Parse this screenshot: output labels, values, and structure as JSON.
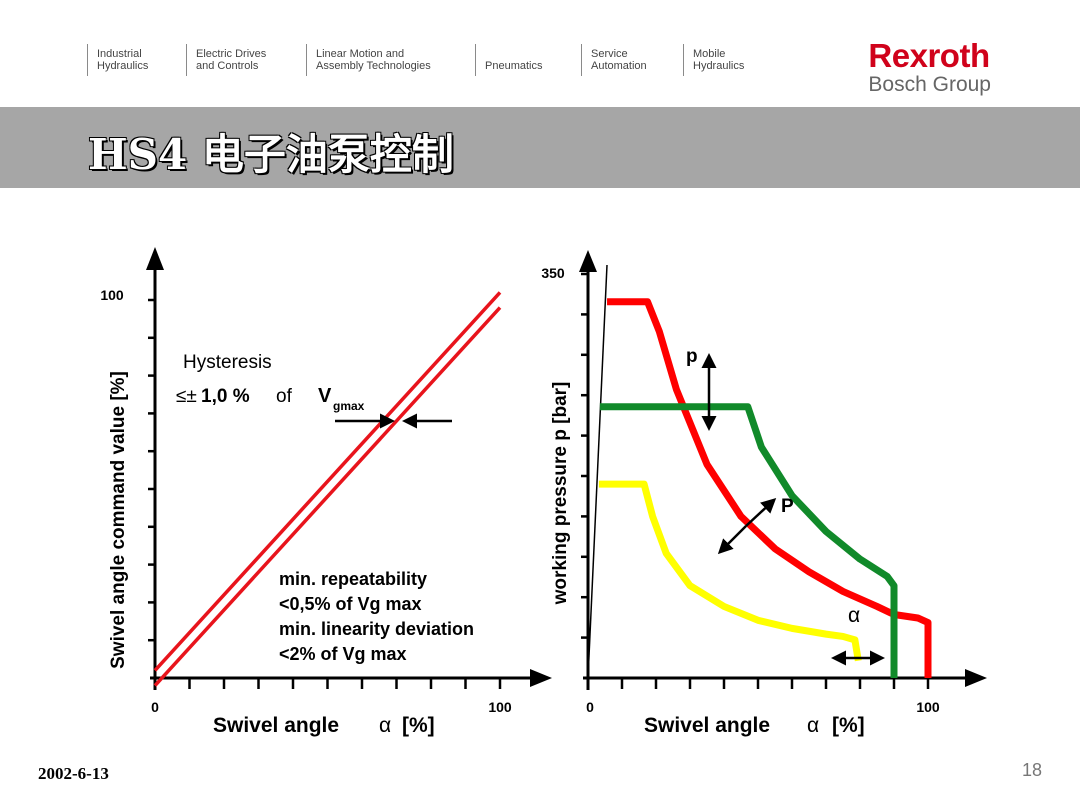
{
  "nav": {
    "items": [
      {
        "label": "Industrial\nHydraulics"
      },
      {
        "label": "Electric Drives\nand Controls"
      },
      {
        "label": "Linear Motion and\nAssembly Technologies"
      },
      {
        "label": "\nPneumatics"
      },
      {
        "label": "Service\nAutomation"
      },
      {
        "label": "Mobile\nHydraulics"
      }
    ]
  },
  "brand": {
    "name": "Rexroth",
    "sub": "Bosch Group",
    "color": "#d0021b"
  },
  "title": "HS4 电子油泵控制",
  "footer": {
    "date": "2002-6-13",
    "page": "18"
  },
  "chart_data": [
    {
      "type": "line",
      "ylabel": "Swivel angle command value [%]",
      "xlabel": "Swivel angle",
      "xlabel_symbol": "α",
      "xlabel_unit": "[%]",
      "x_ticks": [
        "0",
        "100"
      ],
      "y_ticks": [
        "100"
      ],
      "xlim": [
        0,
        100
      ],
      "ylim": [
        0,
        100
      ],
      "series": [
        {
          "color": "#e8141c",
          "x": [
            0,
            100
          ],
          "y": [
            -2,
            98
          ]
        },
        {
          "color": "#e8141c",
          "x": [
            0,
            100
          ],
          "y": [
            2,
            102
          ]
        }
      ],
      "annotations": {
        "hysteresis_title": "Hysteresis",
        "hysteresis_prefix": "≤±",
        "hysteresis_value": "1,0 %",
        "hysteresis_of": "of",
        "v_symbol": "V",
        "v_subscript": "gmax",
        "notes": [
          "min. repeatability",
          "<0,5% of Vg max",
          "min. linearity deviation",
          "<2% of Vg max"
        ]
      }
    },
    {
      "type": "line",
      "ylabel": "working pressure p [bar]",
      "xlabel": "Swivel angle",
      "xlabel_symbol": "α",
      "xlabel_unit": "[%]",
      "x_ticks": [
        "0",
        "100"
      ],
      "y_ticks": [
        "350"
      ],
      "xlim": [
        0,
        100
      ],
      "ylim": [
        0,
        350
      ],
      "series": [
        {
          "color": "#ff0000",
          "x": [
            5.6,
            17.5,
            21,
            26,
            35,
            45,
            55,
            65,
            75,
            85,
            90,
            97,
            100,
            100
          ],
          "y": [
            326,
            326,
            300,
            250,
            185,
            140,
            112,
            92,
            75,
            62,
            55,
            52,
            48,
            0
          ]
        },
        {
          "color": "#118a2a",
          "x": [
            3.5,
            47,
            51,
            60,
            70,
            80,
            88,
            90,
            90
          ],
          "y": [
            235,
            235,
            200,
            158,
            127,
            103,
            88,
            80,
            0
          ]
        },
        {
          "color": "#ffff00",
          "x": [
            3.2,
            16.5,
            19,
            23,
            30,
            40,
            50,
            60,
            70,
            75,
            78.5,
            79.5
          ],
          "y": [
            168,
            168,
            140,
            108,
            80,
            62,
            50,
            43,
            38,
            36,
            33,
            15
          ]
        }
      ],
      "annotations": {
        "p_label": "p",
        "P_label": "P",
        "alpha_label": "α"
      }
    }
  ]
}
